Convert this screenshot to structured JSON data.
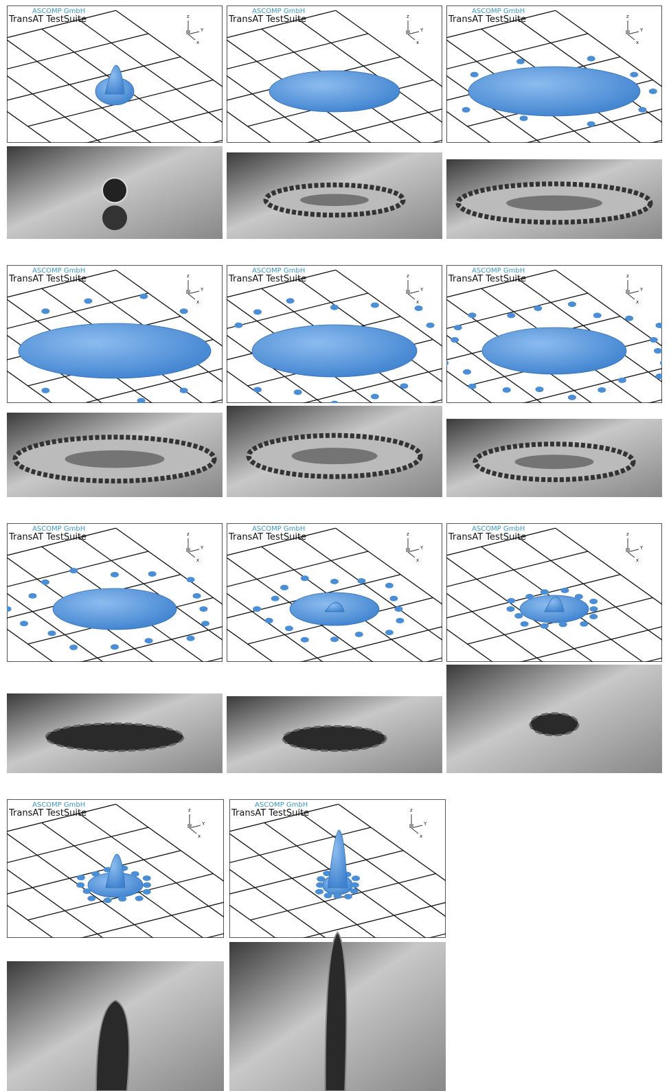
{
  "panels": [
    {
      "brand": "ASCOMP GmbH",
      "title": "TransAT TestSuite",
      "axis_z": "z",
      "axis_y": "Y",
      "axis_x": "x"
    },
    {
      "brand": "ASCOMP GmbH",
      "title": "TransAT TestSuite",
      "axis_z": "z",
      "axis_y": "Y",
      "axis_x": "x"
    },
    {
      "brand": "ASCOMP GmbH",
      "title": "TransAT TestSuite",
      "axis_z": "z",
      "axis_y": "Y",
      "axis_x": "x"
    },
    {
      "brand": "ASCOMP GmbH",
      "title": "TransAT TestSuite",
      "axis_z": "z",
      "axis_y": "Y",
      "axis_x": "x"
    },
    {
      "brand": "ASCOMP GmbH",
      "title": "TransAT TestSuite",
      "axis_z": "z",
      "axis_y": "Y",
      "axis_x": "x"
    },
    {
      "brand": "ASCOMP GmbH",
      "title": "TransAT TestSuite",
      "axis_z": "z",
      "axis_y": "Y",
      "axis_x": "x"
    },
    {
      "brand": "ASCOMP GmbH",
      "title": "TransAT TestSuite",
      "axis_z": "z",
      "axis_y": "Y",
      "axis_x": "x"
    },
    {
      "brand": "ASCOMP GmbH",
      "title": "TransAT TestSuite",
      "axis_z": "z",
      "axis_y": "Y",
      "axis_x": "x"
    },
    {
      "brand": "ASCOMP GmbH",
      "title": "TransAT TestSuite",
      "axis_z": "z",
      "axis_y": "Y",
      "axis_x": "x"
    },
    {
      "brand": "ASCOMP GmbH",
      "title": "TransAT TestSuite",
      "axis_z": "z",
      "axis_y": "Y",
      "axis_x": "x"
    },
    {
      "brand": "ASCOMP GmbH",
      "title": "TransAT TestSuite",
      "axis_z": "z",
      "axis_y": "Y",
      "axis_x": "x"
    }
  ]
}
